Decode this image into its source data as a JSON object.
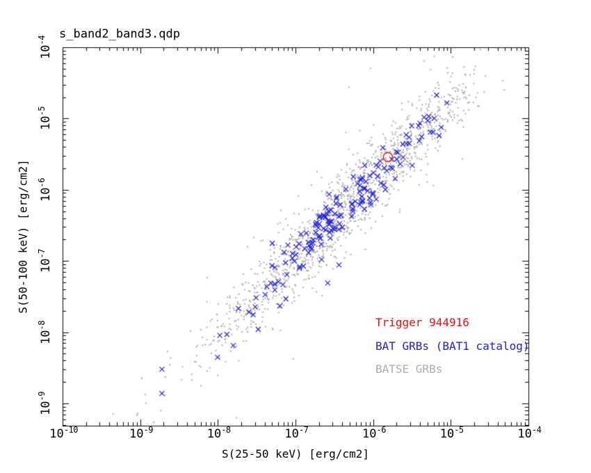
{
  "window": {
    "background_color": "#ffffff",
    "frame_color": "#000000"
  },
  "chart_data": {
    "type": "scatter",
    "title": "s_band2_band3.qdp",
    "xlabel": "S(25-50 keV) [erg/cm2]",
    "ylabel": "S(50-100 keV) [erg/cm2]",
    "x_scale": "log",
    "y_scale": "log",
    "grid": false,
    "x_log_range": [
      -10,
      -4
    ],
    "y_log_range": [
      -9.3125,
      -4
    ],
    "x_tick_exponents": [
      -10,
      -9,
      -8,
      -7,
      -6,
      -5,
      -4
    ],
    "y_tick_exponents": [
      -4,
      -5,
      -6,
      -7,
      -8,
      -9
    ],
    "x_ticks": [
      {
        "base": "10",
        "exp": "-10"
      },
      {
        "base": "10",
        "exp": "-9"
      },
      {
        "base": "10",
        "exp": "-8"
      },
      {
        "base": "10",
        "exp": "-7"
      },
      {
        "base": "10",
        "exp": "-6"
      },
      {
        "base": "10",
        "exp": "-5"
      },
      {
        "base": "10",
        "exp": "-4"
      }
    ],
    "y_ticks": [
      {
        "base": "10",
        "exp": "-4"
      },
      {
        "base": "10",
        "exp": "-5"
      },
      {
        "base": "10",
        "exp": "-6"
      },
      {
        "base": "10",
        "exp": "-7"
      },
      {
        "base": "10",
        "exp": "-8"
      },
      {
        "base": "10",
        "exp": "-9"
      }
    ],
    "legend_position": "bottom-right",
    "series": [
      {
        "name": "BATSE GRBs",
        "color": "#adadad",
        "marker": "dot",
        "count": 1350,
        "seed": 20240915,
        "dist": {
          "logx_mean": -6.3,
          "logx_sigma": 0.95,
          "logx_min": -9.5,
          "logx_max": -4.55,
          "slope": 1.08,
          "intercept": 0.62,
          "scatter_sigma": 0.27,
          "outlier_frac": 0.04,
          "outlier_sigma": 0.65
        },
        "outlier_points_log": [
          [
            -4.33,
            -4.47
          ],
          [
            -4.31,
            -4.6
          ],
          [
            -4.57,
            -4.63
          ],
          [
            -4.78,
            -4.78
          ],
          [
            -9.35,
            -9.15
          ],
          [
            -7.76,
            -9.2
          ]
        ]
      },
      {
        "name": "BAT GRBs (BAT1 catalog)",
        "color": "#2121cd",
        "marker": "x",
        "count": 165,
        "seed": 77,
        "dist": {
          "logx_mean": -6.28,
          "logx_sigma": 0.7,
          "logx_min": -8.45,
          "logx_max": -5.12,
          "slope": 1.08,
          "intercept": 0.62,
          "scatter_sigma": 0.16,
          "outlier_frac": 0.05,
          "outlier_sigma": 0.45
        },
        "outlier_points_log": [
          [
            -8.72,
            -8.52
          ],
          [
            -8.72,
            -8.86
          ],
          [
            -5.05,
            -4.78
          ],
          [
            -7.48,
            -7.96
          ]
        ]
      },
      {
        "name": "Trigger 944916",
        "color": "#e01313",
        "marker": "circle",
        "points_log": [
          [
            -5.81,
            -5.54
          ]
        ]
      }
    ]
  }
}
